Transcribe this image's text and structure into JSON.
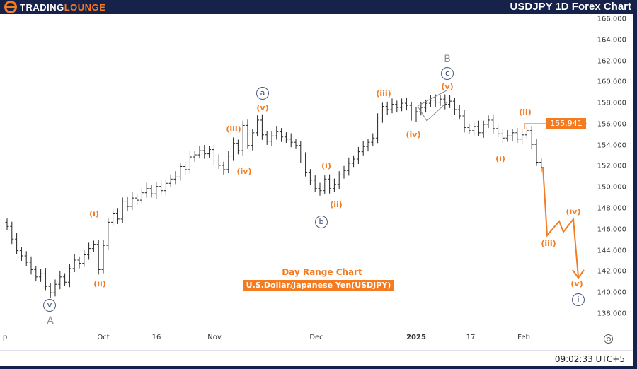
{
  "header": {
    "logo_text_white": "TRADING",
    "logo_text_orange": "LOUNGE",
    "title": "USDJPY 1D Forex Chart"
  },
  "colors": {
    "accent": "#f47b20",
    "frame": "#17224a",
    "wave_circle": "#4a5a80",
    "bars": "#222222"
  },
  "chart_data": {
    "type": "ohlc",
    "ylim": [
      137,
      166.5
    ],
    "y_ticks": [
      "166.000",
      "164.000",
      "162.000",
      "160.000",
      "158.000",
      "156.000",
      "154.000",
      "152.000",
      "150.000",
      "148.000",
      "146.000",
      "144.000",
      "142.000",
      "140.000",
      "138.000"
    ],
    "x_ticks": [
      "p",
      "Oct",
      "16",
      "Nov",
      "Dec",
      "2025",
      "17",
      "Feb"
    ],
    "closes": [
      146.3,
      145.1,
      144.0,
      143.5,
      142.9,
      142.2,
      141.5,
      141.8,
      140.6,
      140.0,
      140.8,
      141.5,
      141.0,
      142.3,
      143.1,
      142.8,
      143.6,
      144.2,
      144.6,
      142.2,
      144.5,
      146.7,
      147.5,
      147.0,
      148.7,
      148.2,
      149.0,
      148.8,
      149.5,
      149.9,
      149.4,
      150.1,
      149.7,
      150.4,
      150.8,
      151.0,
      152.0,
      151.7,
      152.9,
      153.1,
      153.5,
      153.2,
      153.6,
      152.6,
      152.1,
      151.7,
      153.0,
      154.2,
      153.5,
      155.9,
      154.0,
      155.2,
      156.4,
      155.0,
      154.4,
      154.9,
      155.3,
      154.8,
      154.6,
      154.3,
      154.0,
      152.8,
      151.4,
      150.7,
      149.9,
      149.7,
      150.8,
      149.9,
      150.3,
      151.2,
      151.6,
      152.3,
      152.7,
      153.4,
      153.9,
      154.3,
      154.7,
      156.5,
      157.7,
      157.4,
      157.9,
      157.6,
      158.0,
      157.8,
      156.7,
      157.2,
      157.6,
      158.0,
      158.3,
      158.1,
      158.4,
      157.9,
      158.2,
      157.4,
      156.8,
      155.7,
      155.4,
      155.8,
      155.2,
      156.0,
      156.4,
      155.6,
      155.1,
      154.7,
      154.9,
      155.2,
      154.6,
      155.0,
      155.4,
      154.1,
      152.4,
      151.9
    ],
    "current_price": "155.941",
    "wave_labels": {
      "i": "(i)",
      "ii": "(ii)",
      "iii": "(iii)",
      "iv": "(iv)",
      "v": "(v)",
      "a": "a",
      "b": "b",
      "c": "c",
      "circ_i": "i",
      "circ_v": "v",
      "A": "A",
      "B": "B"
    },
    "subtitle": "Day Range Chart",
    "instrument": "U.S.Dollar/Japanese Yen(USDJPY)"
  },
  "footer": {
    "time": "09:02:33 UTC+5"
  }
}
